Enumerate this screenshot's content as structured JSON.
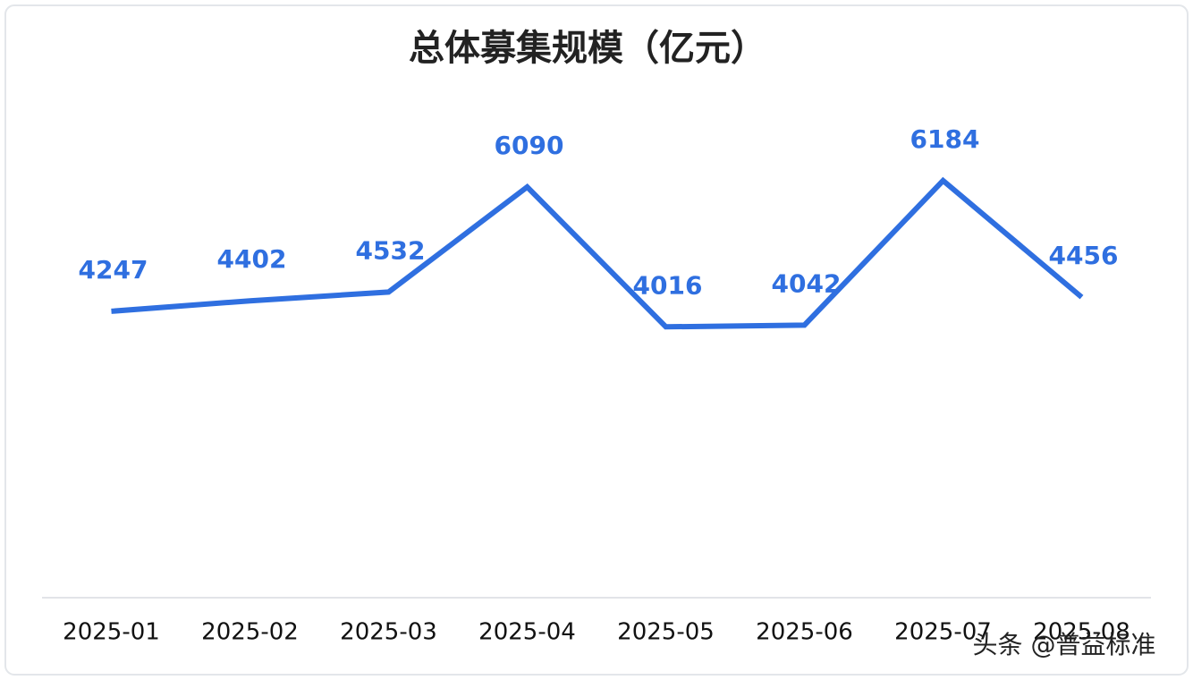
{
  "chart_data": {
    "type": "line",
    "title": "总体募集规模（亿元）",
    "categories": [
      "2025-01",
      "2025-02",
      "2025-03",
      "2025-04",
      "2025-05",
      "2025-06",
      "2025-07",
      "2025-08"
    ],
    "series": [
      {
        "name": "总体募集规模",
        "color": "#2f6fe0",
        "values": [
          4247,
          4402,
          4532,
          6090,
          4016,
          4042,
          6184,
          4456
        ]
      }
    ],
    "ylim": [
      0,
      8000
    ],
    "watermark": "头条 @普益标准"
  }
}
